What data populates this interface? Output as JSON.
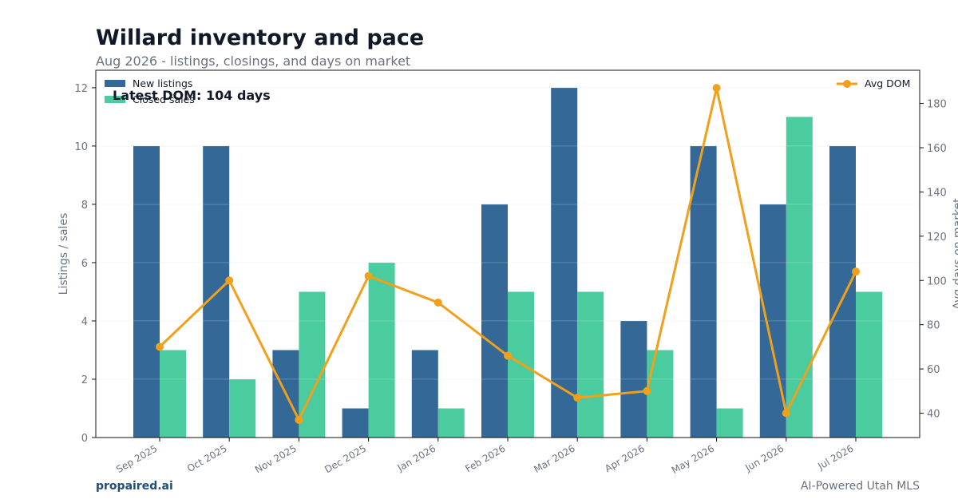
{
  "header": {
    "title": "Willard inventory and pace",
    "subtitle": "Aug 2026 - listings, closings, and days on market"
  },
  "footer": {
    "brand": "propaired.ai",
    "tagline": "AI-Powered Utah MLS"
  },
  "chart_data": {
    "type": "bar",
    "categories": [
      "Sep 2025",
      "Oct 2025",
      "Nov 2025",
      "Dec 2025",
      "Jan 2026",
      "Feb 2026",
      "Mar 2026",
      "Apr 2026",
      "May 2026",
      "Jun 2026",
      "Jul 2026"
    ],
    "series": [
      {
        "name": "New listings",
        "type": "bar",
        "axis": "left",
        "color": "#336897",
        "values": [
          10,
          10,
          3,
          1,
          3,
          8,
          12,
          4,
          10,
          8,
          10
        ]
      },
      {
        "name": "Closed sales",
        "type": "bar",
        "axis": "left",
        "color": "#4bcc9e",
        "values": [
          3,
          2,
          5,
          6,
          1,
          5,
          5,
          3,
          1,
          11,
          5
        ]
      },
      {
        "name": "Avg DOM",
        "type": "line",
        "axis": "right",
        "color": "#f0a01a",
        "values": [
          70,
          100,
          37,
          102,
          90,
          66,
          47,
          50,
          187,
          40,
          104
        ]
      }
    ],
    "ylabel": "Listings / sales",
    "y2label": "Avg days on market",
    "ylim": [
      0,
      12.6
    ],
    "y2lim": [
      29,
      195
    ],
    "yticks": [
      0,
      2,
      4,
      6,
      8,
      10,
      12
    ],
    "y2ticks": [
      40,
      60,
      80,
      100,
      120,
      140,
      160,
      180
    ],
    "grid": true,
    "legend_left": "top-left",
    "legend_right": "top-right",
    "annotation": "Latest DOM: 104 days"
  }
}
